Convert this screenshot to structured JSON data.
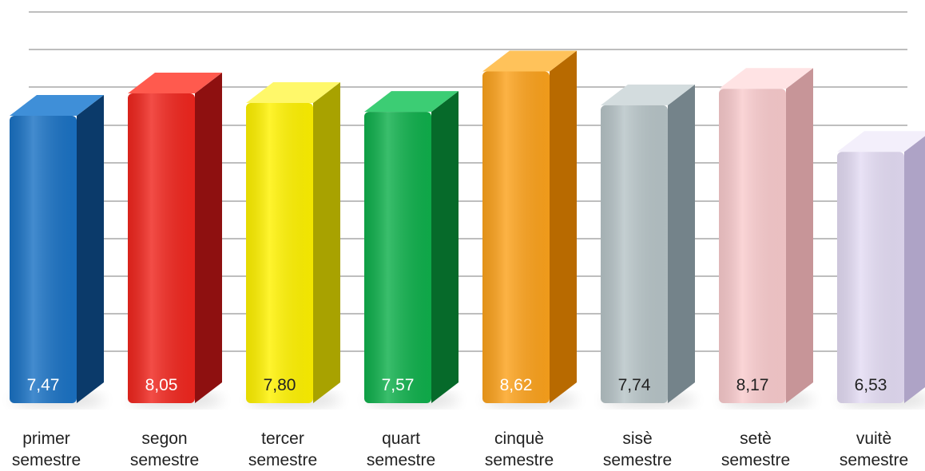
{
  "chart_data": {
    "type": "bar",
    "style": "3d",
    "title": "",
    "xlabel": "",
    "ylabel": "",
    "grid": true,
    "legend": "none",
    "categories": [
      [
        "primer",
        "semestre"
      ],
      [
        "segon",
        "semestre"
      ],
      [
        "tercer",
        "semestre"
      ],
      [
        "quart",
        "semestre"
      ],
      [
        "cinquè",
        "semestre"
      ],
      [
        "sisè",
        "semestre"
      ],
      [
        "setè",
        "semestre"
      ],
      [
        "vuitè",
        "semestre"
      ]
    ],
    "values": [
      7.47,
      8.05,
      7.8,
      7.57,
      8.62,
      7.74,
      8.17,
      6.53
    ],
    "value_labels": [
      "7,47",
      "8,05",
      "7,80",
      "7,57",
      "8,62",
      "7,74",
      "8,17",
      "6,53"
    ],
    "ylim": [
      0,
      10
    ]
  },
  "colors": {
    "bars": [
      {
        "front": "#1a72c4",
        "side": "#0b3a6a",
        "top": "#3f8fd8",
        "label": "#ffffff"
      },
      {
        "front": "#f0261e",
        "side": "#8e1010",
        "top": "#ff5a4e",
        "label": "#ffffff"
      },
      {
        "front": "#fff200",
        "side": "#a8a200",
        "top": "#fff86a",
        "label": "#222222"
      },
      {
        "front": "#0fb04c",
        "side": "#066a2a",
        "top": "#3ccd74",
        "label": "#ffffff"
      },
      {
        "front": "#fca21c",
        "side": "#b86a00",
        "top": "#ffc25a",
        "label": "#ffffff"
      },
      {
        "front": "#b7c4c7",
        "side": "#74838a",
        "top": "#d3dcde",
        "label": "#222222"
      },
      {
        "front": "#f9cbcd",
        "side": "#c79598",
        "top": "#ffe3e4",
        "label": "#222222"
      },
      {
        "front": "#e4dcf4",
        "side": "#aea3c6",
        "top": "#f3effb",
        "label": "#222222"
      }
    ],
    "grid": "#a9a9a9"
  }
}
